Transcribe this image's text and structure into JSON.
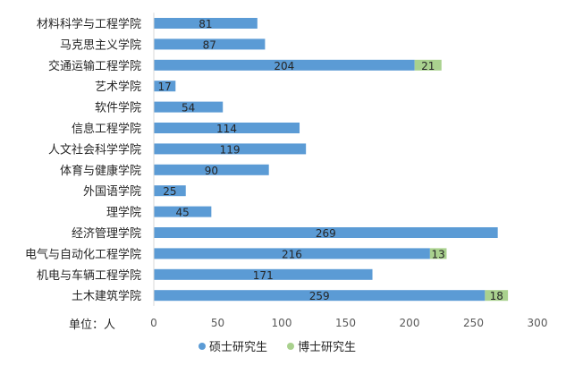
{
  "chart_data": {
    "type": "bar",
    "orientation": "horizontal",
    "stacked": true,
    "categories": [
      "材料科学与工程学院",
      "马克思主义学院",
      "交通运输工程学院",
      "艺术学院",
      "软件学院",
      "信息工程学院",
      "人文社会科学学院",
      "体育与健康学院",
      "外国语学院",
      "理学院",
      "经济管理学院",
      "电气与自动化工程学院",
      "机电与车辆工程学院",
      "土木建筑学院"
    ],
    "series": [
      {
        "name": "硕士研究生",
        "color": "#5b9bd5",
        "values": [
          81,
          87,
          204,
          17,
          54,
          114,
          119,
          90,
          25,
          45,
          269,
          216,
          171,
          259
        ]
      },
      {
        "name": "博士研究生",
        "color": "#a9d18e",
        "values": [
          0,
          0,
          21,
          0,
          0,
          0,
          0,
          0,
          0,
          0,
          0,
          13,
          0,
          18
        ]
      }
    ],
    "xlim": [
      0,
      300
    ],
    "xticks": [
      0,
      50,
      100,
      150,
      200,
      250,
      300
    ],
    "unit_label": "单位：人",
    "grid": false,
    "legend_position": "bottom"
  }
}
